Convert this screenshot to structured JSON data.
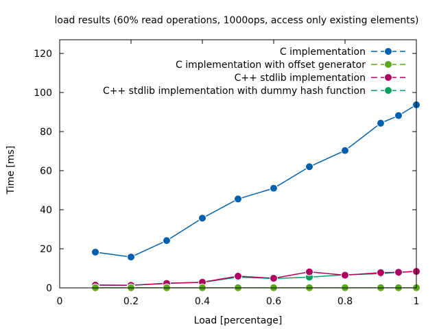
{
  "chart_data": {
    "type": "line",
    "title": "load results (60% read operations, 1000ops, access only existing elements)",
    "xlabel": "Load [percentage]",
    "ylabel": "Time [ms]",
    "xlim": [
      0,
      1
    ],
    "ylim": [
      0,
      127
    ],
    "xticks": [
      0,
      0.2,
      0.4,
      0.6,
      0.8,
      1
    ],
    "xtick_labels": [
      "0",
      "0.2",
      "0.4",
      "0.6",
      "0.8",
      "1"
    ],
    "yticks": [
      0,
      20,
      40,
      60,
      80,
      100,
      120
    ],
    "ytick_labels": [
      "0",
      "20",
      "40",
      "60",
      "80",
      "100",
      "120"
    ],
    "grid": false,
    "legend_position": "top-right",
    "x": [
      0.1,
      0.2,
      0.3,
      0.4,
      0.5,
      0.6,
      0.7,
      0.8,
      0.9,
      0.95,
      1.0
    ],
    "series": [
      {
        "name": "C implementation",
        "color": "#0060ad",
        "values": [
          18.3,
          15.8,
          24.2,
          35.7,
          45.5,
          51.0,
          62.0,
          70.3,
          84.3,
          88.2,
          93.7
        ]
      },
      {
        "name": "C implementation with offset generator",
        "color": "#5ba81a",
        "values": [
          0.1,
          0.1,
          0.1,
          0.1,
          0.1,
          0.1,
          0.1,
          0.1,
          0.1,
          0.1,
          0.1
        ]
      },
      {
        "name": "C++ stdlib implementation",
        "color": "#ad0060",
        "values": [
          1.4,
          1.3,
          2.3,
          2.9,
          6.0,
          4.9,
          8.2,
          6.5,
          7.8,
          8.0,
          8.4
        ]
      },
      {
        "name": "C++ stdlib implementation with dummy hash function",
        "color": "#00a060",
        "values": [
          1.5,
          1.3,
          2.4,
          2.8,
          5.5,
          4.8,
          5.5,
          6.7,
          7.3,
          8.0,
          8.5
        ]
      }
    ]
  }
}
